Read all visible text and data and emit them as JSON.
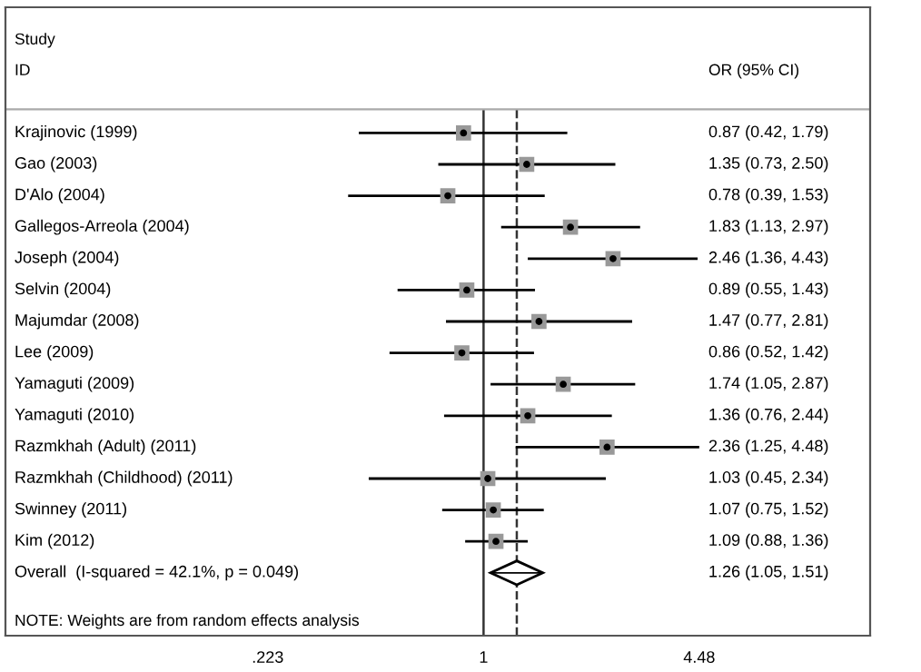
{
  "chart_data": {
    "type": "scatter",
    "orientation": "horizontal",
    "log": "x",
    "grid": false,
    "legend": false,
    "tick_labels": "x",
    "categories": [
      "Krajinovic (1999)",
      "Gao (2003)",
      "D'Alo (2004)",
      "Gallegos-Arreola (2004)",
      "Joseph (2004)",
      "Selvin (2004)",
      "Majumdar (2008)",
      "Lee (2009)",
      "Yamaguti (2009)",
      "Yamaguti (2010)",
      "Razmkhah (Adult) (2011)",
      "Razmkhah (Childhood) (2011)",
      "Swinney (2011)",
      "Kim (2012)",
      "Overall  (I-squared = 42.1%, p = 0.049)"
    ],
    "series": [
      {
        "color": "#999999",
        "marker": "square",
        "values": [
          0.87,
          1.35,
          0.78,
          1.83,
          2.46,
          0.89,
          1.47,
          0.86,
          1.74,
          1.36,
          2.36,
          1.03,
          1.07,
          1.09,
          null
        ],
        "errors": [
          [
            0.42,
            1.79
          ],
          [
            0.73,
            2.5
          ],
          [
            0.39,
            1.53
          ],
          [
            1.13,
            2.97
          ],
          [
            1.36,
            4.43
          ],
          [
            0.55,
            1.43
          ],
          [
            0.77,
            2.81
          ],
          [
            0.52,
            1.42
          ],
          [
            1.05,
            2.87
          ],
          [
            0.76,
            2.44
          ],
          [
            1.25,
            4.48
          ],
          [
            0.45,
            2.34
          ],
          [
            0.75,
            1.52
          ],
          [
            0.88,
            1.36
          ],
          null
        ]
      },
      {
        "color": "#000000",
        "marker": "diamond",
        "values": [
          null,
          null,
          null,
          null,
          null,
          null,
          null,
          null,
          null,
          null,
          null,
          null,
          null,
          null,
          1.26
        ],
        "errors": [
          null,
          null,
          null,
          null,
          null,
          null,
          null,
          null,
          null,
          null,
          null,
          null,
          null,
          null,
          [
            1.05,
            1.51
          ]
        ]
      }
    ],
    "xlim": [
      0.036,
      14.7
    ],
    "xticks": [
      {
        "value": 0.223,
        "label": ".223"
      },
      1,
      4.48
    ],
    "ref_lines": [
      {
        "axis": "x",
        "value": 1,
        "color": "#333333",
        "line_style": "solid"
      },
      {
        "axis": "x",
        "value": 1.26,
        "color": "#333333",
        "line_style": "dashed"
      }
    ],
    "annotations": [
      "Study",
      "ID",
      "OR (95% CI)",
      "0.87 (0.42, 1.79)",
      "1.35 (0.73, 2.50)",
      "0.78 (0.39, 1.53)",
      "1.83 (1.13, 2.97)",
      "2.46 (1.36, 4.43)",
      "0.89 (0.55, 1.43)",
      "1.47 (0.77, 2.81)",
      "0.86 (0.52, 1.42)",
      "1.74 (1.05, 2.87)",
      "1.36 (0.76, 2.44)",
      "2.36 (1.25, 4.48)",
      "1.03 (0.45, 2.34)",
      "1.07 (0.75, 1.52)",
      "1.09 (0.88, 1.36)",
      "1.26 (1.05, 1.51)",
      "NOTE: Weights are from random effects analysis"
    ]
  }
}
